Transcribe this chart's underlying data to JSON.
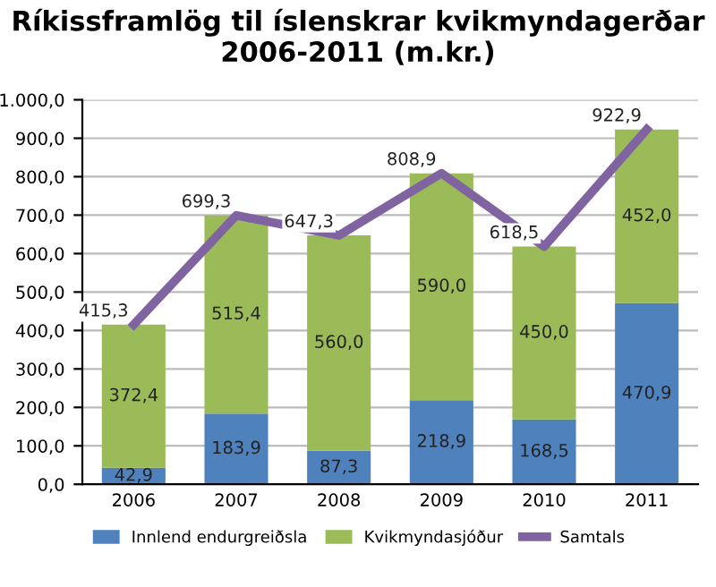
{
  "chart_data": {
    "type": "bar",
    "title": "Ríkissframlög til íslenskrar kvikmyndagerðar\n2006-2011 (m.kr.)",
    "categories": [
      "2006",
      "2007",
      "2008",
      "2009",
      "2010",
      "2011"
    ],
    "stacked": true,
    "series": [
      {
        "name": "Innlend endurgreiðsla",
        "color": "#4f81bd",
        "values": [
          42.9,
          183.9,
          87.3,
          218.9,
          168.5,
          470.9
        ],
        "value_labels": [
          "42,9",
          "183,9",
          "87,3",
          "218,9",
          "168,5",
          "470,9"
        ]
      },
      {
        "name": "Kvikmyndasjóður",
        "color": "#9bbb59",
        "values": [
          372.4,
          515.4,
          560.0,
          590.0,
          450.0,
          452.0
        ],
        "value_labels": [
          "372,4",
          "515,4",
          "560,0",
          "590,0",
          "450,0",
          "452,0"
        ]
      },
      {
        "name": "Samtals",
        "type": "line",
        "color": "#8064a2",
        "values": [
          415.3,
          699.3,
          647.3,
          808.9,
          618.5,
          922.9
        ],
        "value_labels": [
          "415,3",
          "699,3",
          "647,3",
          "808,9",
          "618,5",
          "922,9"
        ]
      }
    ],
    "ylim": [
      0,
      1000
    ],
    "yticks": [
      {
        "value": 0,
        "label": "0,0"
      },
      {
        "value": 100,
        "label": "100,0"
      },
      {
        "value": 200,
        "label": "200,0"
      },
      {
        "value": 300,
        "label": "300,0"
      },
      {
        "value": 400,
        "label": "400,0"
      },
      {
        "value": 500,
        "label": "500,0"
      },
      {
        "value": 600,
        "label": "600,0"
      },
      {
        "value": 700,
        "label": "700,0"
      },
      {
        "value": 800,
        "label": "800,0"
      },
      {
        "value": 900,
        "label": "900,0"
      },
      {
        "value": 1000,
        "label": "1.000,0"
      }
    ],
    "grid": "y",
    "legend": "bottom",
    "marker": "none"
  }
}
